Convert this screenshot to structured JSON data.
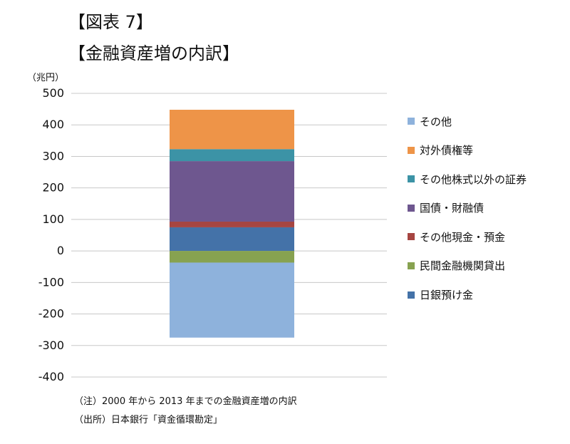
{
  "titles": {
    "figure_label": "【図表 7】",
    "chart_title": "【金融資産増の内訳】"
  },
  "chart_data": {
    "type": "bar",
    "stacked": true,
    "categories": [
      ""
    ],
    "unit_label": "（兆円）",
    "ylim": [
      -400,
      500
    ],
    "yticks": [
      500,
      400,
      300,
      200,
      100,
      0,
      -100,
      -200,
      -300,
      -400
    ],
    "grid": true,
    "legend_position": "right",
    "series": [
      {
        "name": "日銀預け金",
        "color": "#4472A8",
        "values": [
          75
        ]
      },
      {
        "name": "その他現金・預金",
        "color": "#A64541",
        "values": [
          18
        ]
      },
      {
        "name": "民間金融機関貸出",
        "color": "#87A250",
        "values": [
          -37
        ]
      },
      {
        "name": "国債・財融債",
        "color": "#6E578F",
        "values": [
          192
        ]
      },
      {
        "name": "その他株式以外の証券",
        "color": "#3C93A6",
        "values": [
          38
        ]
      },
      {
        "name": "対外債権等",
        "color": "#EE9448",
        "values": [
          125
        ]
      },
      {
        "name": "その他",
        "color": "#8EB2DC",
        "values": [
          -238
        ]
      }
    ],
    "legend_order": [
      "その他",
      "対外債権等",
      "その他株式以外の証券",
      "国債・財融債",
      "その他現金・預金",
      "民間金融機関貸出",
      "日銀預け金"
    ]
  },
  "notes": {
    "note": "（注）2000 年から 2013 年までの金融資産増の内訳",
    "source": "（出所）日本銀行「資金循環勘定」"
  }
}
